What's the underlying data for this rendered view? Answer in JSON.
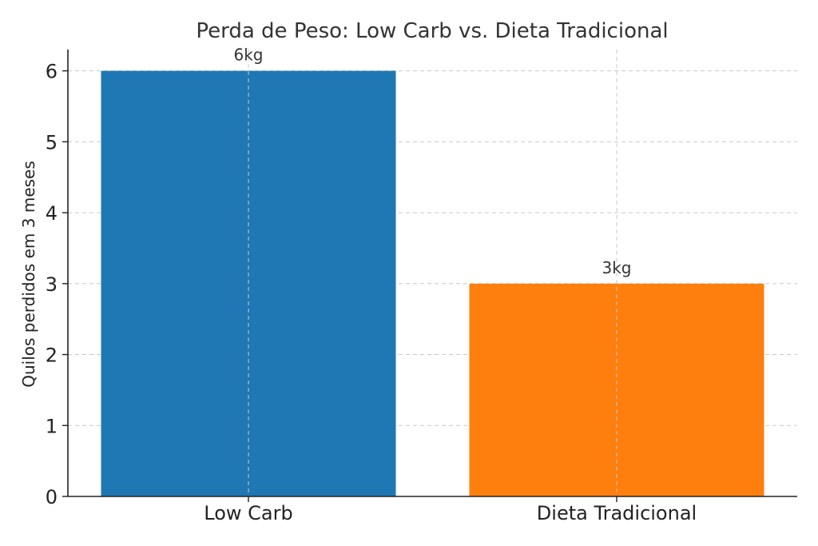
{
  "chart_data": {
    "type": "bar",
    "title": "Perda de Peso: Low Carb vs. Dieta Tradicional",
    "xlabel": "",
    "ylabel": "Quilos perdidos em 3 meses",
    "categories": [
      "Low Carb",
      "Dieta Tradicional"
    ],
    "values": [
      6,
      3
    ],
    "data_labels": [
      "6kg",
      "3kg"
    ],
    "colors": [
      "#1f77b4",
      "#ff7f0e"
    ],
    "ylim": [
      0,
      6.3
    ],
    "yticks": [
      0,
      1,
      2,
      3,
      4,
      5,
      6
    ],
    "ytick_labels": [
      "0",
      "1",
      "2",
      "3",
      "4",
      "5",
      "6"
    ],
    "grid": true
  }
}
